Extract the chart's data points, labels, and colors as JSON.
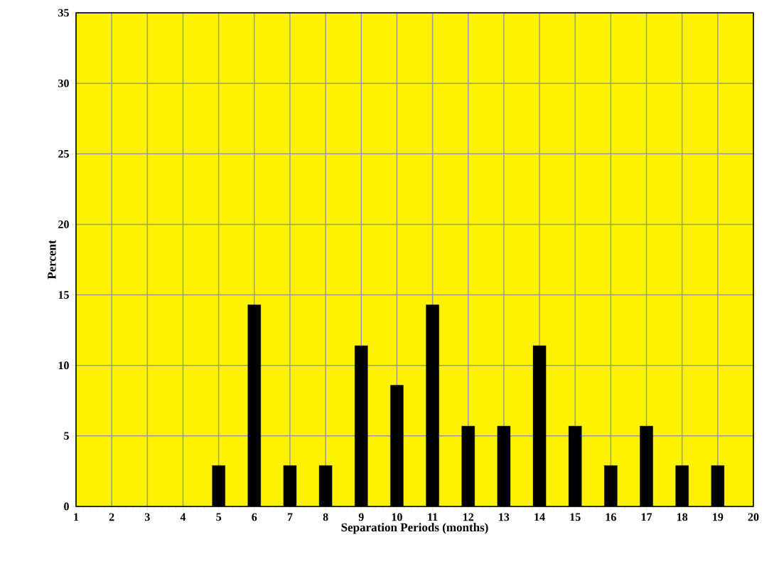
{
  "chart_data": {
    "type": "bar",
    "xlabel": "Separation Periods (months)",
    "ylabel": "Percent",
    "x": [
      5,
      6,
      7,
      8,
      9,
      10,
      11,
      12,
      13,
      14,
      15,
      16,
      17,
      18,
      19
    ],
    "values": [
      2.9,
      14.3,
      2.9,
      2.9,
      11.4,
      8.6,
      14.3,
      5.7,
      5.7,
      11.4,
      5.7,
      2.9,
      5.7,
      2.9,
      2.9
    ],
    "color": "#000000",
    "xlim": [
      1,
      20
    ],
    "xticks": [
      1,
      2,
      3,
      4,
      5,
      6,
      7,
      8,
      9,
      10,
      11,
      12,
      13,
      14,
      15,
      16,
      17,
      18,
      19,
      20
    ],
    "ylim": [
      0,
      35
    ],
    "yticks": [
      0,
      5,
      10,
      15,
      20,
      25,
      30,
      35
    ],
    "grid": true
  }
}
